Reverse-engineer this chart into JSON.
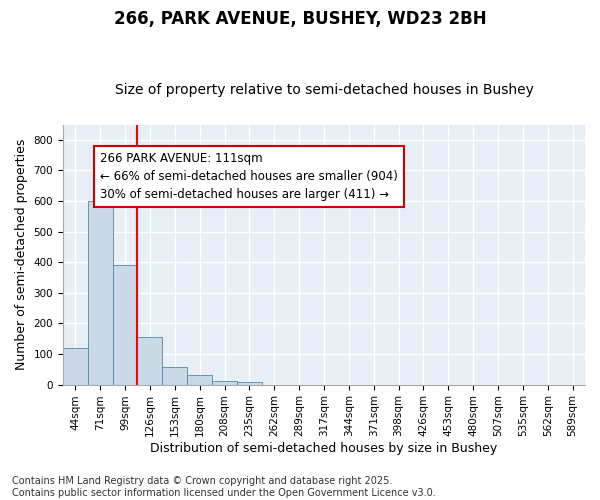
{
  "title1": "266, PARK AVENUE, BUSHEY, WD23 2BH",
  "title2": "Size of property relative to semi-detached houses in Bushey",
  "xlabel": "Distribution of semi-detached houses by size in Bushey",
  "ylabel": "Number of semi-detached properties",
  "bar_values": [
    118,
    600,
    390,
    155,
    58,
    30,
    12,
    7,
    0,
    0,
    0,
    0,
    0,
    0,
    0,
    0,
    0,
    0,
    0,
    0,
    0
  ],
  "categories": [
    "44sqm",
    "71sqm",
    "99sqm",
    "126sqm",
    "153sqm",
    "180sqm",
    "208sqm",
    "235sqm",
    "262sqm",
    "289sqm",
    "317sqm",
    "344sqm",
    "371sqm",
    "398sqm",
    "426sqm",
    "453sqm",
    "480sqm",
    "507sqm",
    "535sqm",
    "562sqm",
    "589sqm"
  ],
  "bar_color": "#c9d9e8",
  "bar_edge_color": "#5588aa",
  "red_line_x": 2.5,
  "annotation_text": "266 PARK AVENUE: 111sqm\n← 66% of semi-detached houses are smaller (904)\n30% of semi-detached houses are larger (411) →",
  "annotation_box_color": "#ffffff",
  "annotation_box_edge_color": "#cc0000",
  "ylim": [
    0,
    850
  ],
  "yticks": [
    0,
    100,
    200,
    300,
    400,
    500,
    600,
    700,
    800
  ],
  "background_color": "#e8eef5",
  "grid_color": "#ffffff",
  "fig_background": "#ffffff",
  "footer_text": "Contains HM Land Registry data © Crown copyright and database right 2025.\nContains public sector information licensed under the Open Government Licence v3.0.",
  "title1_fontsize": 12,
  "title2_fontsize": 10,
  "xlabel_fontsize": 9,
  "ylabel_fontsize": 9,
  "tick_fontsize": 7.5,
  "annotation_fontsize": 8.5,
  "footer_fontsize": 7
}
